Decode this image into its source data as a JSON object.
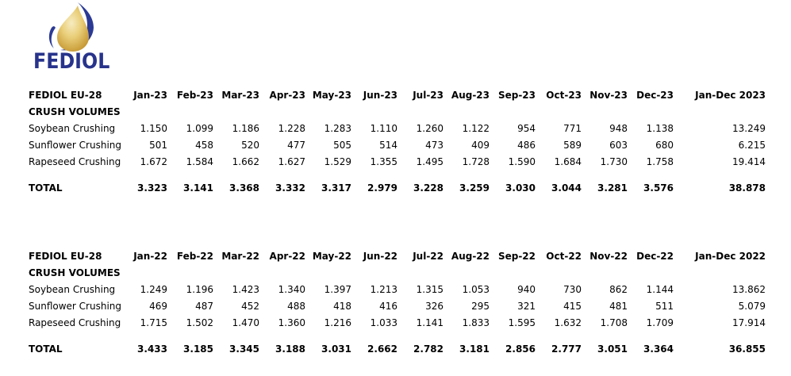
{
  "logo": {
    "wordmark": "FEDIOL",
    "icon": "oil-drop-icon",
    "brand_blue": "#27338B",
    "brand_gold": "#D8A93B"
  },
  "tables": [
    {
      "title": "FEDIOL EU-28",
      "subtitle": "CRUSH VOLUMES",
      "columns": [
        "Jan-23",
        "Feb-23",
        "Mar-23",
        "Apr-23",
        "May-23",
        "Jun-23",
        "Jul-23",
        "Aug-23",
        "Sep-23",
        "Oct-23",
        "Nov-23",
        "Dec-23",
        "Jan-Dec 2023"
      ],
      "rows": [
        {
          "label": "Soybean Crushing",
          "values": [
            "1.150",
            "1.099",
            "1.186",
            "1.228",
            "1.283",
            "1.110",
            "1.260",
            "1.122",
            "954",
            "771",
            "948",
            "1.138",
            "13.249"
          ]
        },
        {
          "label": "Sunflower Crushing",
          "values": [
            "501",
            "458",
            "520",
            "477",
            "505",
            "514",
            "473",
            "409",
            "486",
            "589",
            "603",
            "680",
            "6.215"
          ]
        },
        {
          "label": "Rapeseed Crushing",
          "values": [
            "1.672",
            "1.584",
            "1.662",
            "1.627",
            "1.529",
            "1.355",
            "1.495",
            "1.728",
            "1.590",
            "1.684",
            "1.730",
            "1.758",
            "19.414"
          ]
        }
      ],
      "total": {
        "label": "TOTAL",
        "values": [
          "3.323",
          "3.141",
          "3.368",
          "3.332",
          "3.317",
          "2.979",
          "3.228",
          "3.259",
          "3.030",
          "3.044",
          "3.281",
          "3.576",
          "38.878"
        ]
      }
    },
    {
      "title": "FEDIOL EU-28",
      "subtitle": "CRUSH VOLUMES",
      "columns": [
        "Jan-22",
        "Feb-22",
        "Mar-22",
        "Apr-22",
        "May-22",
        "Jun-22",
        "Jul-22",
        "Aug-22",
        "Sep-22",
        "Oct-22",
        "Nov-22",
        "Dec-22",
        "Jan-Dec 2022"
      ],
      "rows": [
        {
          "label": "Soybean Crushing",
          "values": [
            "1.249",
            "1.196",
            "1.423",
            "1.340",
            "1.397",
            "1.213",
            "1.315",
            "1.053",
            "940",
            "730",
            "862",
            "1.144",
            "13.862"
          ]
        },
        {
          "label": "Sunflower Crushing",
          "values": [
            "469",
            "487",
            "452",
            "488",
            "418",
            "416",
            "326",
            "295",
            "321",
            "415",
            "481",
            "511",
            "5.079"
          ]
        },
        {
          "label": "Rapeseed Crushing",
          "values": [
            "1.715",
            "1.502",
            "1.470",
            "1.360",
            "1.216",
            "1.033",
            "1.141",
            "1.833",
            "1.595",
            "1.632",
            "1.708",
            "1.709",
            "17.914"
          ]
        }
      ],
      "total": {
        "label": "TOTAL",
        "values": [
          "3.433",
          "3.185",
          "3.345",
          "3.188",
          "3.031",
          "2.662",
          "2.782",
          "3.181",
          "2.856",
          "2.777",
          "3.051",
          "3.364",
          "36.855"
        ]
      }
    }
  ]
}
